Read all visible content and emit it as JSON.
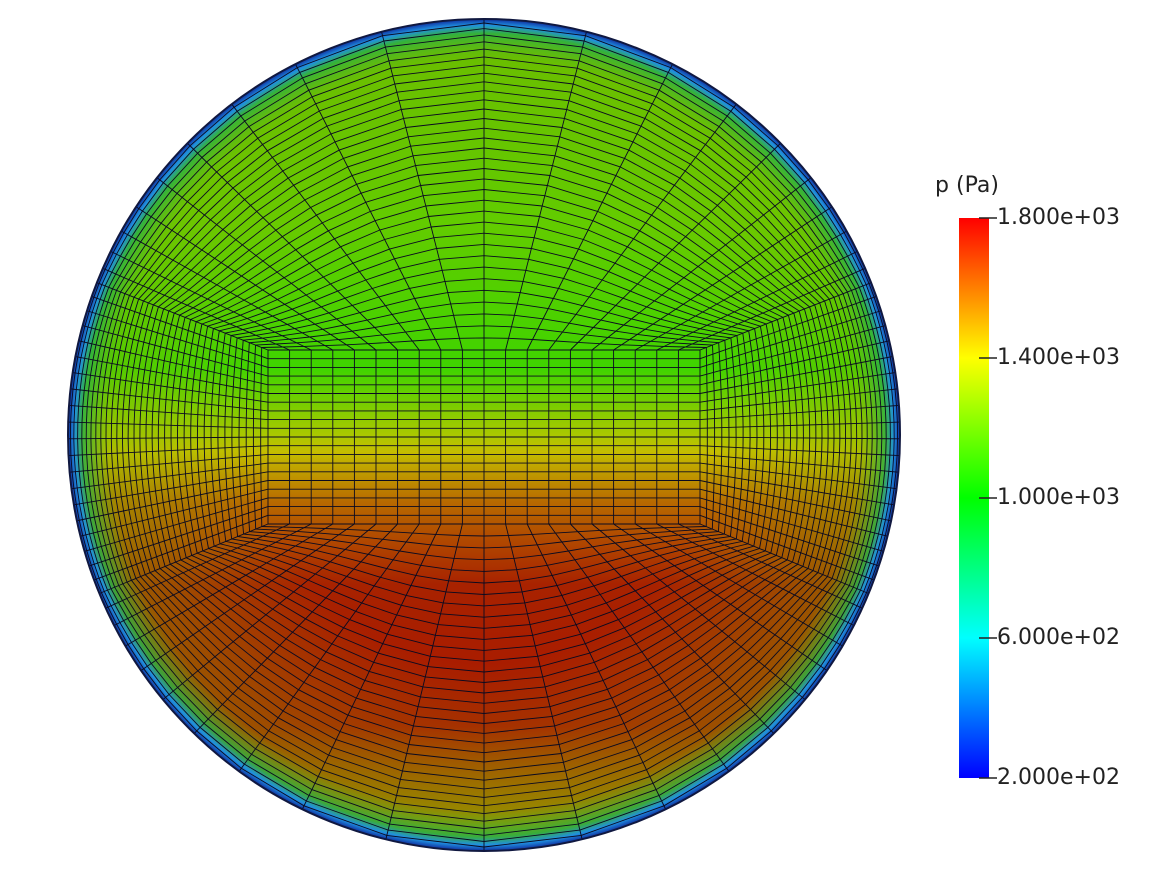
{
  "chart_data": {
    "type": "field",
    "title": "p (Pa)",
    "ylim": [
      200,
      1800
    ],
    "yticks": [
      {
        "value": 200,
        "label": "2.000e+02"
      },
      {
        "value": 600,
        "label": "6.000e+02"
      },
      {
        "value": 1000,
        "label": "1.000e+03"
      },
      {
        "value": 1400,
        "label": "1.400e+03"
      },
      {
        "value": 1800,
        "label": "1.800e+03"
      }
    ],
    "colormap": [
      "#0000ff",
      "#00ffff",
      "#00ff00",
      "#ffff00",
      "#ff0000"
    ]
  }
}
